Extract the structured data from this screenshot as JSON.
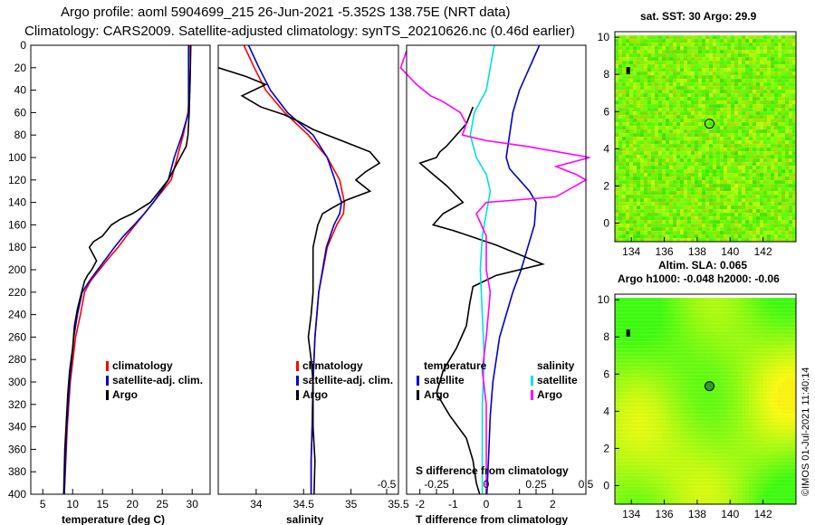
{
  "header": {
    "title1": "Argo profile: aoml 5904699_215 26-Jun-2021 -5.352S 138.75E (NRT data)",
    "title2": "Climatology: CARS2009. Satellite-adjusted climatology: synTS_20210626.nc (0.46d earlier)"
  },
  "credit": "©IMOS 01-Jul-2021 11:40:14",
  "colors": {
    "climatology": "#ff0000",
    "satellite": "#0000cc",
    "argo": "#000000",
    "satellite_s": "#00e0e0",
    "argo_s": "#ff00ff"
  },
  "chart_data": [
    {
      "type": "line",
      "panel": "temperature",
      "xlabel": "temperature (deg C)",
      "ylabel": "",
      "xlim": [
        3,
        33
      ],
      "ylim": [
        400,
        0
      ],
      "xticks": [
        "5",
        "10",
        "15",
        "20",
        "25",
        "30"
      ],
      "yticks": [
        "0",
        "20",
        "40",
        "60",
        "80",
        "100",
        "120",
        "140",
        "160",
        "180",
        "200",
        "220",
        "240",
        "260",
        "280",
        "300",
        "320",
        "340",
        "360",
        "380",
        "400"
      ],
      "legend": [
        "climatology",
        "satellite-adj. clim.",
        "Argo"
      ],
      "series": [
        {
          "name": "climatology",
          "color": "#ff0000",
          "x": [
            29.8,
            29.7,
            29.6,
            29.3,
            28.5,
            27.5,
            26.5,
            25,
            23.5,
            22,
            20.5,
            19,
            17.6,
            16,
            14.5,
            13,
            12,
            11.3,
            10.5,
            9.6,
            9.1,
            8.6
          ],
          "y": [
            0,
            20,
            40,
            60,
            80,
            100,
            120,
            130,
            140,
            150,
            160,
            170,
            180,
            190,
            200,
            210,
            220,
            240,
            260,
            300,
            340,
            400
          ]
        },
        {
          "name": "satellite-adj. clim.",
          "color": "#0000cc",
          "x": [
            29.4,
            29.4,
            29.4,
            29.4,
            28.3,
            27,
            26,
            24.8,
            23.5,
            22,
            20.3,
            18.5,
            17,
            15.6,
            14.2,
            12.8,
            11.6,
            10.8,
            10.2,
            9.5,
            9,
            8.6
          ],
          "y": [
            0,
            20,
            40,
            60,
            80,
            100,
            120,
            130,
            140,
            150,
            160,
            170,
            180,
            190,
            200,
            210,
            220,
            240,
            260,
            300,
            340,
            400
          ]
        },
        {
          "name": "Argo",
          "color": "#000000",
          "x": [
            29.7,
            29.7,
            29.6,
            29.5,
            29.3,
            29,
            28,
            27,
            26,
            24.5,
            23,
            21.5,
            20,
            18,
            16.5,
            15,
            13.5,
            12.8,
            14,
            13.2,
            12.5,
            12,
            11.5,
            10.8,
            10.3,
            10,
            9.5,
            9.2,
            9,
            8.7,
            8.5
          ],
          "y": [
            0,
            20,
            40,
            60,
            80,
            90,
            100,
            110,
            120,
            130,
            140,
            145,
            150,
            155,
            160,
            170,
            175,
            180,
            192,
            200,
            205,
            210,
            220,
            235,
            250,
            270,
            290,
            310,
            330,
            360,
            400
          ]
        }
      ]
    },
    {
      "type": "line",
      "panel": "salinity",
      "xlabel": "salinity",
      "ylabel": "",
      "xlim": [
        33.6,
        35.5
      ],
      "ylim": [
        400,
        0
      ],
      "xticks": [
        "34",
        "34.5",
        "35",
        "35.5"
      ],
      "legend": [
        "climatology",
        "satellite-adj. clim.",
        "Argo"
      ],
      "series": [
        {
          "name": "climatology",
          "color": "#ff0000",
          "x": [
            33.87,
            33.98,
            34.1,
            34.3,
            34.55,
            34.75,
            34.88,
            34.93,
            34.92,
            34.85,
            34.75,
            34.66,
            34.62,
            34.6,
            34.59,
            34.58,
            34.58
          ],
          "y": [
            0,
            20,
            40,
            60,
            80,
            100,
            120,
            140,
            150,
            160,
            180,
            220,
            260,
            300,
            340,
            370,
            400
          ]
        },
        {
          "name": "satellite-adj. clim.",
          "color": "#0000cc",
          "x": [
            33.92,
            34.03,
            34.15,
            34.33,
            34.6,
            34.75,
            34.83,
            34.9,
            34.88,
            34.82,
            34.74,
            34.66,
            34.62,
            34.6,
            34.59,
            34.58,
            34.58
          ],
          "y": [
            0,
            20,
            40,
            60,
            80,
            100,
            120,
            140,
            150,
            160,
            180,
            220,
            260,
            300,
            340,
            370,
            400
          ]
        },
        {
          "name": "Argo",
          "color": "#000000",
          "x": [
            33.6,
            33.9,
            34.1,
            33.85,
            34.05,
            34.3,
            34.45,
            34.6,
            34.75,
            34.9,
            35.2,
            35.3,
            35.15,
            35.05,
            35.2,
            34.95,
            34.8,
            34.7,
            34.65,
            34.6,
            34.6,
            34.6,
            34.58,
            34.55,
            34.58,
            34.6,
            34.6,
            34.6,
            34.62,
            34.61
          ],
          "y": [
            20,
            28,
            35,
            45,
            55,
            62,
            68,
            75,
            80,
            85,
            95,
            105,
            113,
            120,
            130,
            138,
            145,
            150,
            160,
            180,
            200,
            220,
            240,
            260,
            280,
            300,
            320,
            340,
            370,
            400
          ]
        }
      ]
    },
    {
      "type": "line",
      "panel": "difference",
      "xlabel": "T difference from climatology",
      "xlabel_top": "S difference from climatology",
      "xlim": [
        -2.4,
        3.0
      ],
      "ylim": [
        400,
        0
      ],
      "xticks": [
        "-2",
        "-1",
        "0",
        "1",
        "2"
      ],
      "xticks_top": [
        "-0.5",
        "-0.25",
        "0",
        "0.25",
        "0.5"
      ],
      "legend_t": {
        "heading": "temperature",
        "items": [
          "satellite",
          "Argo"
        ]
      },
      "legend_s": {
        "heading": "salinity",
        "items": [
          "satellite",
          "Argo"
        ]
      },
      "series": [
        {
          "name": "temperature satellite",
          "color": "#0000cc",
          "x": [
            1.6,
            1.3,
            1.0,
            0.8,
            0.7,
            0.6,
            0.7,
            1.0,
            1.3,
            1.5,
            1.45,
            1.25,
            1.05,
            0.8,
            0.6,
            0.4,
            0.3,
            0.2,
            0.12,
            0.08,
            0.05,
            0.02
          ],
          "y": [
            0,
            20,
            40,
            60,
            80,
            100,
            110,
            120,
            130,
            140,
            160,
            180,
            200,
            220,
            240,
            260,
            280,
            300,
            330,
            360,
            380,
            400
          ]
        },
        {
          "name": "temperature Argo",
          "color": "#000000",
          "x": [
            -0.4,
            -0.6,
            -0.9,
            -1.2,
            -1.4,
            -1.5,
            -2.0,
            -1.6,
            -1.2,
            -0.7,
            -1.3,
            -1.6,
            -1.0,
            -0.5,
            0.3,
            1.7,
            0.3,
            -0.4,
            -0.5,
            -0.6,
            -0.9,
            -1.3,
            -1.5,
            -1.1,
            -0.6,
            -0.4,
            -0.3,
            -0.2
          ],
          "y": [
            55,
            70,
            80,
            90,
            95,
            100,
            105,
            115,
            125,
            140,
            150,
            160,
            165,
            170,
            178,
            195,
            205,
            215,
            230,
            250,
            270,
            290,
            310,
            330,
            350,
            370,
            390,
            400
          ]
        },
        {
          "name": "salinity satellite",
          "color": "#00e0e0",
          "x": [
            0.04,
            0.0,
            -0.06,
            -0.08,
            -0.05,
            0.0,
            0.02,
            0.0,
            -0.02,
            -0.03,
            -0.02,
            -0.01,
            -0.02,
            -0.02,
            -0.02
          ],
          "y": [
            0,
            40,
            60,
            80,
            100,
            115,
            130,
            150,
            170,
            200,
            240,
            280,
            320,
            360,
            400
          ]
        },
        {
          "name": "salinity Argo",
          "color": "#ff00ff",
          "x": [
            -0.4,
            -0.43,
            -0.35,
            -0.28,
            -0.22,
            -0.13,
            -0.1,
            -0.12,
            0.0,
            0.2,
            0.52,
            0.35,
            0.45,
            0.5,
            0.35,
            0.0,
            -0.05,
            0.0,
            0.0,
            0.02,
            0.0,
            -0.02,
            0.0,
            0.0,
            0.0,
            0.0
          ],
          "y": [
            5,
            20,
            35,
            45,
            50,
            60,
            70,
            80,
            85,
            90,
            100,
            108,
            115,
            120,
            135,
            140,
            150,
            170,
            200,
            220,
            260,
            290,
            320,
            350,
            380,
            400
          ]
        }
      ]
    },
    {
      "type": "heatmap",
      "panel": "map_sst",
      "title": "sat. SST: 30 Argo: 29.9",
      "xticks": [
        "134",
        "136",
        "138",
        "140",
        "142"
      ],
      "yticks": [
        "0",
        "2",
        "4",
        "6",
        "8",
        "10"
      ],
      "xlim": [
        133,
        144
      ],
      "ylim": [
        -1,
        10.3
      ],
      "marker": [
        138.75,
        5.35
      ]
    },
    {
      "type": "heatmap",
      "panel": "map_sla",
      "title": "Altim. SLA: 0.065",
      "subtitle": "Argo h1000: -0.048 h2000: -0.06",
      "xticks": [
        "134",
        "136",
        "138",
        "140",
        "142"
      ],
      "yticks": [
        "0",
        "2",
        "4",
        "6",
        "8",
        "10"
      ],
      "xlim": [
        133,
        144
      ],
      "ylim": [
        -1,
        10.3
      ],
      "marker": [
        138.75,
        5.35
      ]
    }
  ]
}
